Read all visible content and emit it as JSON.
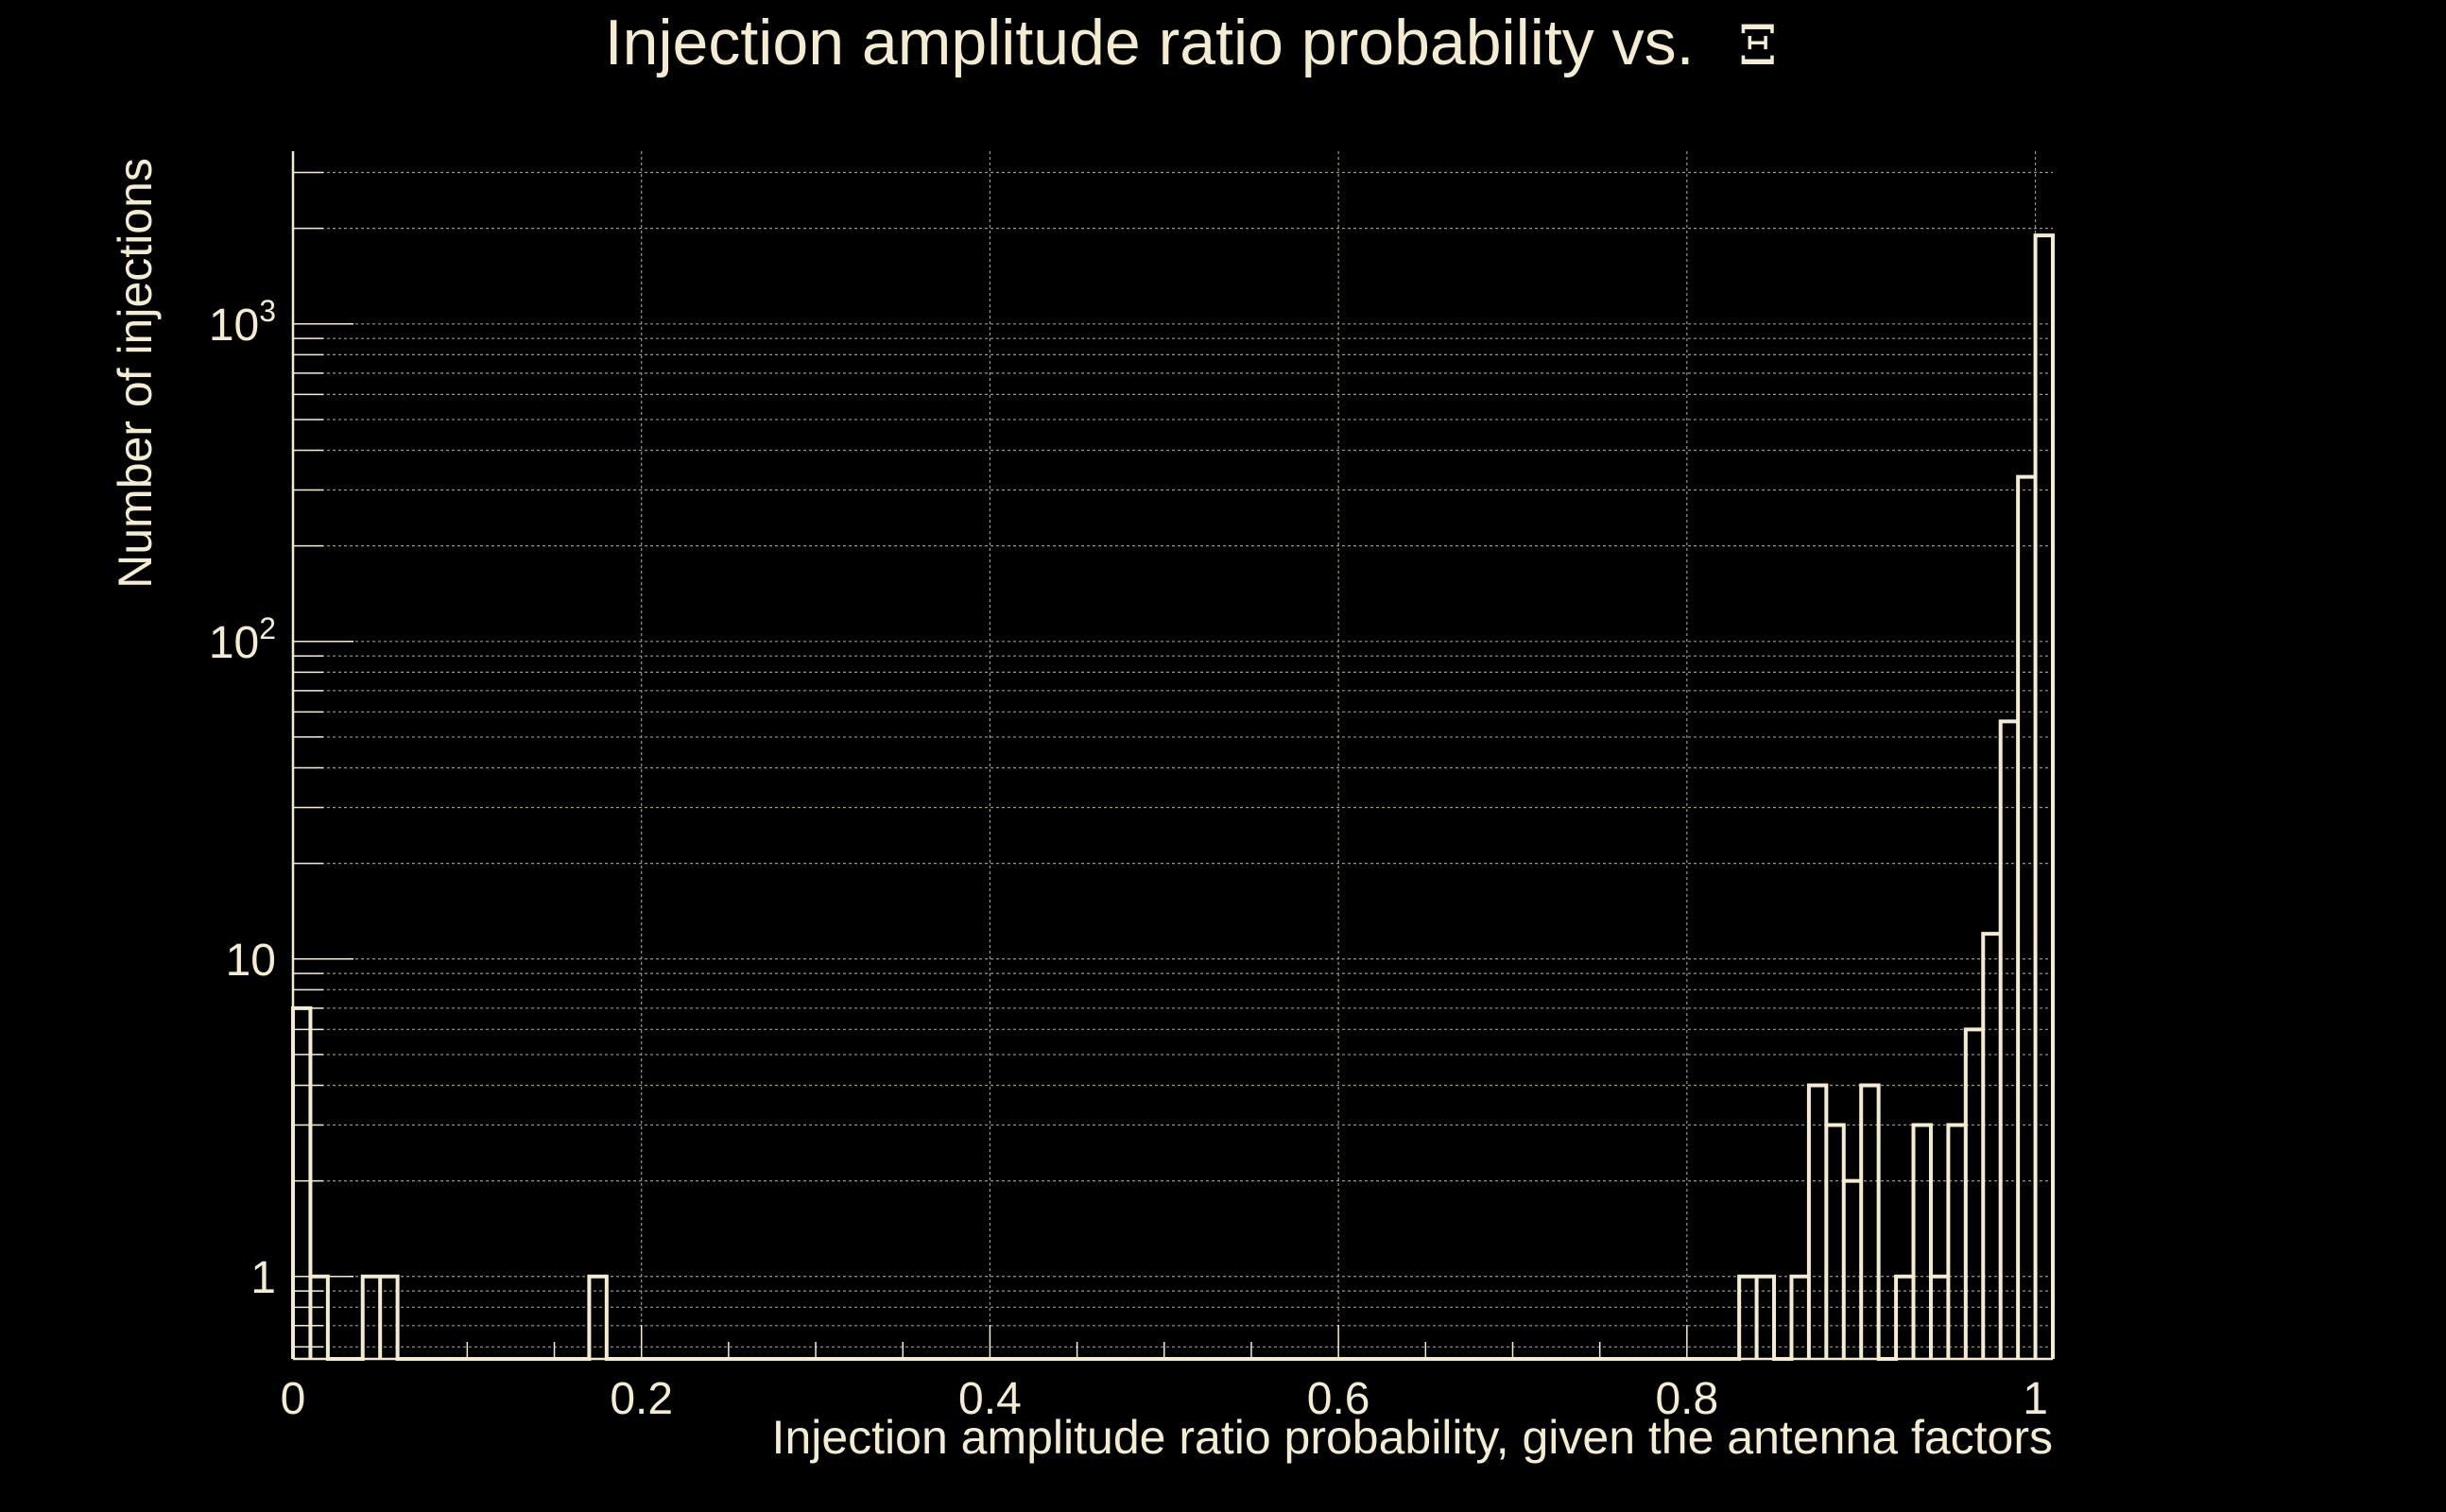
{
  "colors": {
    "background": "#000000",
    "foreground": "#f4ecd0",
    "grid": "#9a9688"
  },
  "chart_data": {
    "type": "histogram",
    "title_text": "Injection amplitude ratio probability vs.",
    "title_symbol": "Ξ",
    "xlabel": "Injection amplitude ratio probability, given the antenna factors",
    "ylabel": "Number of injections",
    "xlim": [
      0,
      1.01
    ],
    "ylim": [
      0.55,
      3500
    ],
    "y_scale": "log",
    "grid": true,
    "x_ticks": [
      {
        "value": 0,
        "label": "0"
      },
      {
        "value": 0.2,
        "label": "0.2"
      },
      {
        "value": 0.4,
        "label": "0.4"
      },
      {
        "value": 0.6,
        "label": "0.6"
      },
      {
        "value": 0.8,
        "label": "0.8"
      },
      {
        "value": 1,
        "label": "1"
      }
    ],
    "y_ticks": [
      {
        "value": 1,
        "base": "1",
        "exp": ""
      },
      {
        "value": 10,
        "base": "10",
        "exp": ""
      },
      {
        "value": 100,
        "base": "10",
        "exp": "2"
      },
      {
        "value": 1000,
        "base": "10",
        "exp": "3"
      }
    ],
    "bin_width": 0.01,
    "bins": [
      {
        "x0": 0.0,
        "count": 7
      },
      {
        "x0": 0.01,
        "count": 1
      },
      {
        "x0": 0.04,
        "count": 1
      },
      {
        "x0": 0.05,
        "count": 1
      },
      {
        "x0": 0.17,
        "count": 1
      },
      {
        "x0": 0.83,
        "count": 1
      },
      {
        "x0": 0.84,
        "count": 1
      },
      {
        "x0": 0.86,
        "count": 1
      },
      {
        "x0": 0.87,
        "count": 4
      },
      {
        "x0": 0.88,
        "count": 3
      },
      {
        "x0": 0.89,
        "count": 2
      },
      {
        "x0": 0.9,
        "count": 4
      },
      {
        "x0": 0.92,
        "count": 1
      },
      {
        "x0": 0.93,
        "count": 3
      },
      {
        "x0": 0.94,
        "count": 1
      },
      {
        "x0": 0.95,
        "count": 3
      },
      {
        "x0": 0.96,
        "count": 6
      },
      {
        "x0": 0.97,
        "count": 12
      },
      {
        "x0": 0.98,
        "count": 56
      },
      {
        "x0": 0.99,
        "count": 330
      },
      {
        "x0": 1.0,
        "count": 1900
      }
    ]
  }
}
